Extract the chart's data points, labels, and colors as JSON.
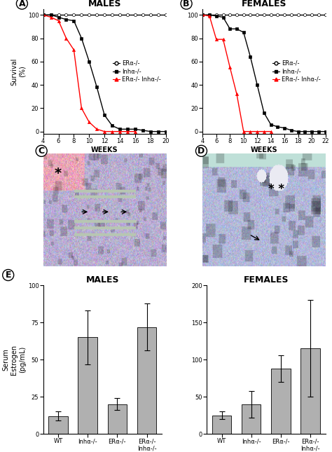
{
  "males_survival": {
    "title": "MALES",
    "xlabel": "WEEKS",
    "ylabel": "Survival\n(%)",
    "xlim": [
      4,
      20
    ],
    "ylim": [
      -2,
      105
    ],
    "xticks": [
      4,
      6,
      8,
      10,
      12,
      14,
      16,
      18,
      20
    ],
    "yticks": [
      0,
      20,
      40,
      60,
      80,
      100
    ],
    "era_ko": {
      "x": [
        4,
        5,
        6,
        7,
        8,
        9,
        10,
        11,
        12,
        13,
        14,
        15,
        16,
        17,
        18,
        19,
        20
      ],
      "y": [
        100,
        100,
        100,
        100,
        100,
        100,
        100,
        100,
        100,
        100,
        100,
        100,
        100,
        100,
        100,
        100,
        100
      ],
      "color": "black",
      "marker": "o",
      "markerfacecolor": "white",
      "label": "ERα-/-"
    },
    "inha_ko": {
      "x": [
        4,
        5,
        6,
        7,
        8,
        9,
        10,
        11,
        12,
        13,
        14,
        15,
        16,
        17,
        18,
        19,
        20
      ],
      "y": [
        100,
        100,
        98,
        96,
        95,
        80,
        60,
        38,
        14,
        5,
        2,
        2,
        2,
        1,
        0,
        0,
        0
      ],
      "color": "black",
      "marker": "s",
      "markerfacecolor": "black",
      "label": "Inhα-/-"
    },
    "double_ko": {
      "x": [
        4,
        5,
        6,
        7,
        8,
        9,
        10,
        11,
        12,
        13,
        14,
        15,
        16
      ],
      "y": [
        100,
        98,
        95,
        80,
        70,
        20,
        8,
        2,
        0,
        0,
        0,
        0,
        0
      ],
      "color": "red",
      "marker": "^",
      "markerfacecolor": "red",
      "label": "ERα-/- Inhα-/-"
    }
  },
  "females_survival": {
    "title": "FEMALES",
    "xlabel": "WEEKS",
    "xlim": [
      4,
      22
    ],
    "ylim": [
      -2,
      105
    ],
    "xticks": [
      4,
      6,
      8,
      10,
      12,
      14,
      16,
      18,
      20,
      22
    ],
    "yticks": [
      0,
      20,
      40,
      60,
      80,
      100
    ],
    "era_ko": {
      "x": [
        4,
        5,
        6,
        7,
        8,
        9,
        10,
        11,
        12,
        13,
        14,
        15,
        16,
        17,
        18,
        19,
        20,
        21,
        22
      ],
      "y": [
        100,
        100,
        100,
        100,
        100,
        100,
        100,
        100,
        100,
        100,
        100,
        100,
        100,
        100,
        100,
        100,
        100,
        100,
        100
      ],
      "color": "black",
      "marker": "o",
      "markerfacecolor": "white",
      "label": "ERα-/-"
    },
    "inha_ko": {
      "x": [
        4,
        5,
        6,
        7,
        8,
        9,
        10,
        11,
        12,
        13,
        14,
        15,
        16,
        17,
        18,
        19,
        20,
        21,
        22
      ],
      "y": [
        100,
        100,
        99,
        98,
        88,
        88,
        85,
        64,
        40,
        16,
        6,
        4,
        3,
        1,
        0,
        0,
        0,
        0,
        0
      ],
      "color": "black",
      "marker": "s",
      "markerfacecolor": "black",
      "label": "Inhα-/-"
    },
    "double_ko": {
      "x": [
        4,
        5,
        6,
        7,
        8,
        9,
        10,
        11,
        12,
        13,
        14
      ],
      "y": [
        100,
        99,
        79,
        79,
        55,
        32,
        0,
        0,
        0,
        0,
        0
      ],
      "color": "red",
      "marker": "^",
      "markerfacecolor": "red",
      "label": "ERα-/- Inhα-/-"
    }
  },
  "males_bar": {
    "title": "MALES",
    "ylabel": "Serum\nEstrogen\n(pg/mL)",
    "ylim": [
      0,
      100
    ],
    "yticks": [
      0,
      25,
      50,
      75,
      100
    ],
    "categories": [
      "WT",
      "Inhα-/-",
      "ERα-/-",
      "ERα-/-\nInhα-/-"
    ],
    "values": [
      12,
      65,
      20,
      72
    ],
    "errors": [
      3,
      18,
      4,
      16
    ],
    "bar_color": "#b0b0b0"
  },
  "females_bar": {
    "title": "FEMALES",
    "ylim": [
      0,
      200
    ],
    "yticks": [
      0,
      50,
      100,
      150,
      200
    ],
    "categories": [
      "WT",
      "Inhα-/-",
      "ERα-/-",
      "ERα-/-\nInhα-/-"
    ],
    "values": [
      25,
      40,
      88,
      115
    ],
    "errors": [
      5,
      18,
      18,
      65
    ],
    "bar_color": "#b0b0b0"
  },
  "panel_label_fontsize": 9,
  "axis_fontsize": 7,
  "title_fontsize": 9,
  "legend_fontsize": 6,
  "tick_fontsize": 6
}
